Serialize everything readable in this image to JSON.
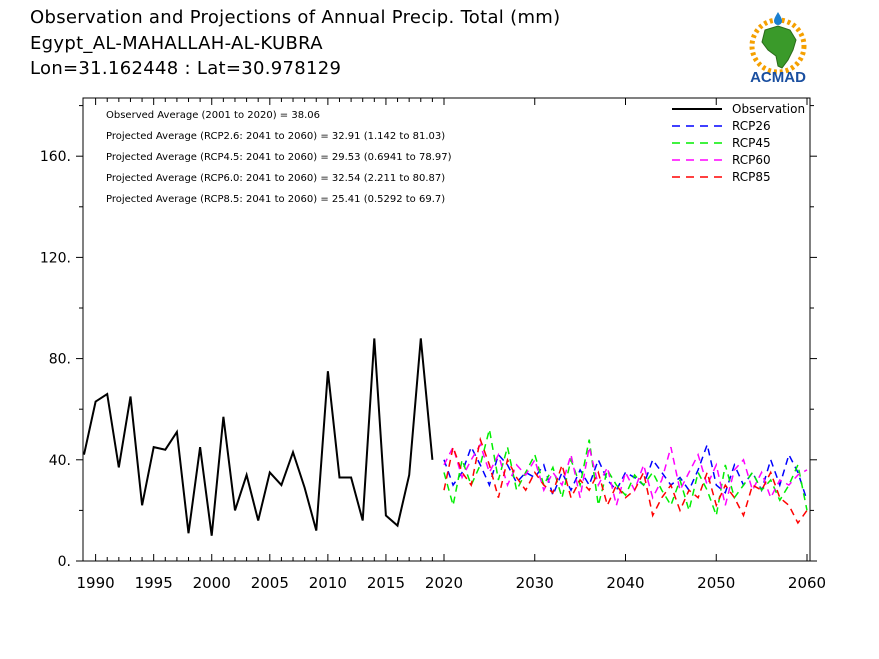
{
  "header": {
    "line1": "Observation and Projections of Annual Precip. Total (mm)",
    "line2": "Egypt_AL-MAHALLAH-AL-KUBRA",
    "line3": "Lon=31.162448 : Lat=30.978129"
  },
  "logo": {
    "text": "ACMAD",
    "icon": "africa-map-sun-logo"
  },
  "annotations": [
    "Observed Average (2001 to 2020) = 38.06",
    "Projected Average (RCP2.6: 2041 to 2060) = 32.91 (1.142 to 81.03)",
    "Projected Average (RCP4.5: 2041 to 2060) = 29.53 (0.6941 to 78.97)",
    "Projected Average (RCP6.0: 2041 to 2060) = 32.54 (2.211 to 80.87)",
    "Projected Average (RCP8.5: 2041 to 2060) = 25.41 (0.5292 to 69.7)"
  ],
  "chart_data": {
    "type": "line",
    "xlim": [
      1989,
      2060
    ],
    "ylim": [
      0,
      180
    ],
    "xticks": [
      1990,
      1995,
      2000,
      2005,
      2010,
      2015,
      2020,
      2030,
      2040,
      2050,
      2060
    ],
    "xtick_labels": [
      "1990",
      "1995",
      "2000",
      "2005",
      "2010",
      "2015",
      "2020",
      "2030",
      "2040",
      "2050",
      "2060"
    ],
    "yticks": [
      0,
      40,
      80,
      120,
      160
    ],
    "ytick_labels": [
      "0.",
      "40.",
      "80.",
      "120.",
      "160."
    ],
    "legend_position": "top-right",
    "series": [
      {
        "name": "Observation",
        "color": "#000000",
        "dashed": false,
        "x": [
          1989,
          1990,
          1991,
          1992,
          1993,
          1994,
          1995,
          1996,
          1997,
          1998,
          1999,
          2000,
          2001,
          2002,
          2003,
          2004,
          2005,
          2006,
          2007,
          2008,
          2009,
          2010,
          2011,
          2012,
          2013,
          2014,
          2015,
          2016,
          2017,
          2018,
          2019
        ],
        "y": [
          42,
          63,
          66,
          37,
          65,
          22,
          45,
          44,
          51,
          11,
          45,
          10,
          57,
          20,
          34,
          16,
          35,
          30,
          43,
          29,
          12,
          75,
          33,
          33,
          16,
          88,
          18,
          14,
          34,
          88,
          40
        ]
      },
      {
        "name": "RCP26",
        "color": "#0000ff",
        "dashed": true,
        "x": [
          2020,
          2021,
          2022,
          2023,
          2024,
          2025,
          2026,
          2027,
          2028,
          2029,
          2030,
          2031,
          2032,
          2033,
          2034,
          2035,
          2036,
          2037,
          2038,
          2039,
          2040,
          2041,
          2042,
          2043,
          2044,
          2045,
          2046,
          2047,
          2048,
          2049,
          2050,
          2051,
          2052,
          2053,
          2054,
          2055,
          2056,
          2057,
          2058,
          2059,
          2060
        ],
        "y": [
          40,
          30,
          35,
          45,
          38,
          30,
          42,
          38,
          31,
          35,
          33,
          38,
          26,
          35,
          28,
          36,
          30,
          40,
          32,
          28,
          35,
          33,
          30,
          40,
          35,
          30,
          33,
          28,
          36,
          46,
          30,
          27,
          38,
          30,
          35,
          28,
          40,
          30,
          42,
          35,
          24
        ]
      },
      {
        "name": "RCP45",
        "color": "#00ee00",
        "dashed": true,
        "x": [
          2020,
          2021,
          2022,
          2023,
          2024,
          2025,
          2026,
          2027,
          2028,
          2029,
          2030,
          2031,
          2032,
          2033,
          2034,
          2035,
          2036,
          2037,
          2038,
          2039,
          2040,
          2041,
          2042,
          2043,
          2044,
          2045,
          2046,
          2047,
          2048,
          2049,
          2050,
          2051,
          2052,
          2053,
          2054,
          2055,
          2056,
          2057,
          2058,
          2059,
          2060
        ],
        "y": [
          35,
          22,
          40,
          30,
          38,
          52,
          32,
          45,
          28,
          35,
          42,
          30,
          37,
          25,
          40,
          30,
          48,
          22,
          36,
          30,
          26,
          34,
          30,
          35,
          28,
          22,
          32,
          20,
          35,
          28,
          18,
          38,
          25,
          30,
          35,
          28,
          32,
          24,
          30,
          38,
          20
        ]
      },
      {
        "name": "RCP60",
        "color": "#ff00ff",
        "dashed": true,
        "x": [
          2020,
          2021,
          2022,
          2023,
          2024,
          2025,
          2026,
          2027,
          2028,
          2029,
          2030,
          2031,
          2032,
          2033,
          2034,
          2035,
          2036,
          2037,
          2038,
          2039,
          2040,
          2041,
          2042,
          2043,
          2044,
          2045,
          2046,
          2047,
          2048,
          2049,
          2050,
          2051,
          2052,
          2053,
          2054,
          2055,
          2056,
          2057,
          2058,
          2059,
          2060
        ],
        "y": [
          38,
          45,
          33,
          40,
          46,
          35,
          42,
          30,
          38,
          34,
          40,
          28,
          35,
          30,
          42,
          25,
          45,
          30,
          37,
          22,
          35,
          28,
          38,
          25,
          32,
          45,
          28,
          35,
          42,
          30,
          38,
          22,
          36,
          40,
          28,
          35,
          25,
          32,
          30,
          34,
          36
        ]
      },
      {
        "name": "RCP85",
        "color": "#ff0000",
        "dashed": true,
        "x": [
          2020,
          2021,
          2022,
          2023,
          2024,
          2025,
          2026,
          2027,
          2028,
          2029,
          2030,
          2031,
          2032,
          2033,
          2034,
          2035,
          2036,
          2037,
          2038,
          2039,
          2040,
          2041,
          2042,
          2043,
          2044,
          2045,
          2046,
          2047,
          2048,
          2049,
          2050,
          2051,
          2052,
          2053,
          2054,
          2055,
          2056,
          2057,
          2058,
          2059,
          2060
        ],
        "y": [
          28,
          45,
          35,
          30,
          48,
          38,
          25,
          40,
          33,
          28,
          35,
          30,
          27,
          38,
          25,
          32,
          28,
          35,
          22,
          30,
          25,
          28,
          35,
          18,
          25,
          30,
          20,
          28,
          25,
          35,
          22,
          30,
          25,
          18,
          30,
          28,
          35,
          25,
          22,
          15,
          20
        ]
      }
    ]
  }
}
